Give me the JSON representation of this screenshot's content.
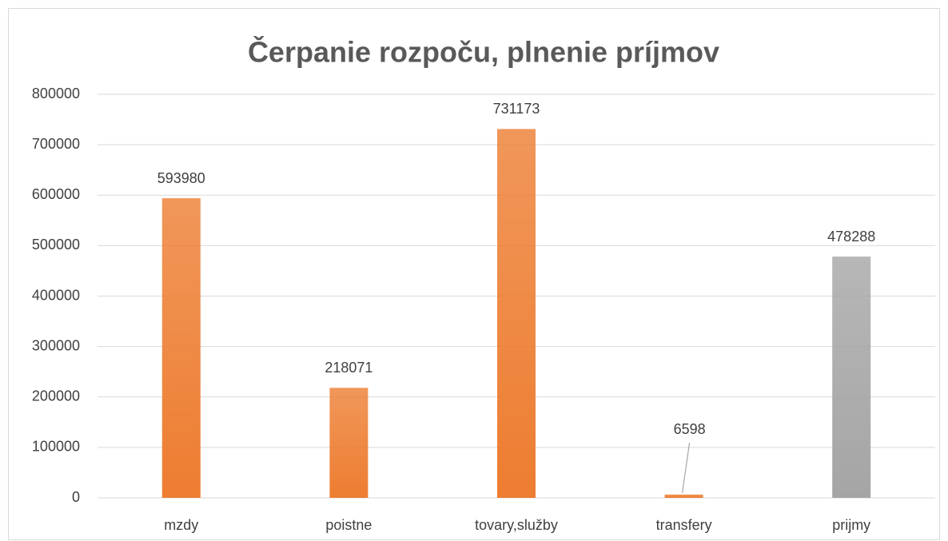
{
  "chart_data": {
    "type": "bar",
    "title": "Čerpanie rozpoču, plnenie príjmov",
    "categories": [
      "mzdy",
      "poistne",
      "tovary,služby",
      "transfery",
      "prijmy"
    ],
    "values": [
      593980,
      218071,
      731173,
      6598,
      478288
    ],
    "colors": [
      "#ed7d31",
      "#ed7d31",
      "#ed7d31",
      "#ed7d31",
      "#a5a5a5"
    ],
    "ylim": [
      0,
      800000
    ],
    "yticks": [
      0,
      100000,
      200000,
      300000,
      400000,
      500000,
      600000,
      700000,
      800000
    ],
    "grid": true
  }
}
